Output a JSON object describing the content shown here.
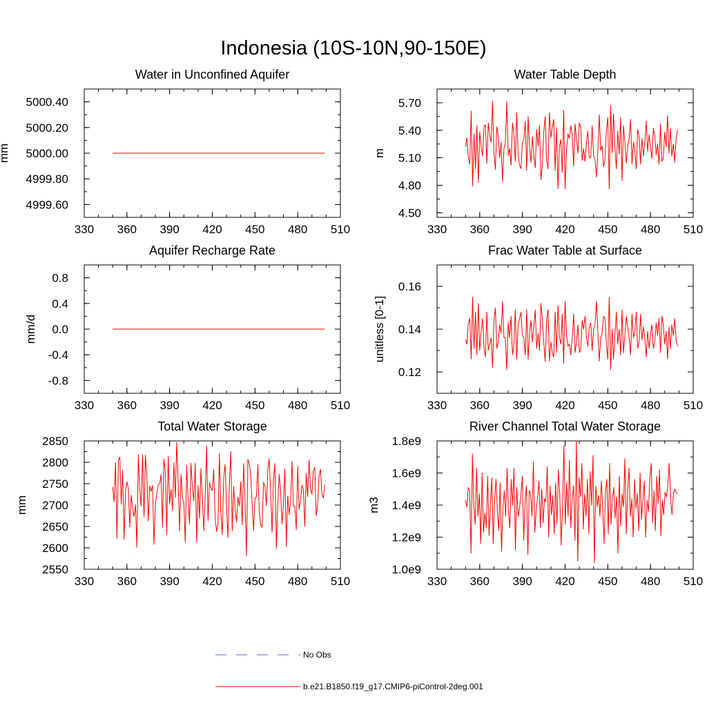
{
  "figure": {
    "title": "Indonesia (10S-10N,90-150E)",
    "series_color": "#ff0000",
    "obs_color": "#5a6ab8"
  },
  "legend": {
    "items": [
      {
        "label": "No Obs",
        "style": "dashed",
        "color": "#5a6ab8"
      },
      {
        "label": "b.e21.B1850.f19_g17.CMIP6-piControl-2deg.001",
        "style": "solid",
        "color": "#ff0000"
      }
    ]
  },
  "chart_data": [
    {
      "type": "line",
      "title": "Water in Unconfined Aquifer",
      "ylabel": "mm",
      "xlim": [
        330,
        510
      ],
      "ylim": [
        4999.5,
        5000.5
      ],
      "xticks": [
        330,
        360,
        390,
        420,
        450,
        480,
        510
      ],
      "yticks": [
        4999.6,
        4999.8,
        5000.0,
        5000.2,
        5000.4
      ],
      "ytick_labels": [
        "4999.60",
        "4999.80",
        "5000.00",
        "5000.20",
        "5000.40"
      ],
      "x_start": 350,
      "x_end": 499,
      "series": [
        {
          "name": "b.e21.B1850.f19_g17.CMIP6-piControl-2deg.001",
          "constant": 5000.0
        }
      ]
    },
    {
      "type": "line",
      "title": "Water Table Depth",
      "ylabel": "m",
      "xlim": [
        330,
        510
      ],
      "ylim": [
        4.45,
        5.85
      ],
      "xticks": [
        330,
        360,
        390,
        420,
        450,
        480,
        510
      ],
      "yticks": [
        4.5,
        4.8,
        5.1,
        5.4,
        5.7
      ],
      "ytick_labels": [
        "4.50",
        "4.80",
        "5.10",
        "5.40",
        "5.70"
      ],
      "x_start": 350,
      "x_end": 499,
      "series": [
        {
          "name": "b.e21.B1850.f19_g17.CMIP6-piControl-2deg.001",
          "values": [
            5.22,
            5.32,
            5.1,
            5.03,
            5.61,
            4.79,
            5.36,
            4.98,
            5.45,
            4.83,
            5.38,
            5.22,
            5.12,
            5.44,
            5.46,
            5.04,
            5.48,
            5.35,
            5.27,
            5.72,
            5.16,
            4.97,
            5.44,
            5.34,
            5.1,
            5.27,
            4.84,
            5.2,
            5.26,
            5.71,
            5.12,
            5.2,
            5.02,
            5.48,
            5.36,
            5.06,
            5.59,
            5.14,
            5.02,
            4.98,
            5.27,
            5.3,
            5.5,
            4.96,
            5.55,
            5.22,
            5.05,
            5.33,
            5.12,
            4.99,
            5.41,
            5.23,
            5.45,
            4.86,
            5.02,
            5.38,
            5.55,
            5.08,
            4.98,
            5.59,
            5.32,
            5.43,
            5.52,
            4.96,
            5.43,
            4.76,
            5.22,
            5.3,
            4.94,
            5.62,
            4.76,
            5.19,
            5.36,
            5.31,
            5.45,
            5.34,
            5.01,
            5.47,
            5.3,
            5.15,
            5.48,
            5.43,
            5.07,
            5.2,
            5.06,
            5.27,
            5.39,
            5.1,
            5.1,
            5.45,
            5.12,
            5.09,
            4.89,
            5.17,
            5.57,
            5.18,
            5.23,
            5.0,
            5.08,
            5.39,
            5.54,
            4.76,
            5.67,
            5.15,
            5.58,
            5.22,
            4.98,
            5.39,
            5.14,
            5.54,
            4.85,
            5.45,
            5.27,
            5.04,
            5.23,
            5.31,
            5.52,
            5.03,
            5.27,
            5.17,
            4.98,
            5.41,
            5.33,
            5.03,
            5.31,
            5.12,
            5.27,
            5.5,
            5.17,
            5.35,
            5.22,
            5.09,
            5.42,
            5.34,
            5.13,
            5.25,
            5.03,
            5.47,
            5.06,
            5.09,
            5.38,
            5.22,
            5.56,
            5.15,
            5.42,
            5.12,
            5.25,
            5.05,
            5.31,
            5.41
          ]
        }
      ]
    },
    {
      "type": "line",
      "title": "Aquifer Recharge Rate",
      "ylabel": "mm/d",
      "xlim": [
        330,
        510
      ],
      "ylim": [
        -1.0,
        1.0
      ],
      "xticks": [
        330,
        360,
        390,
        420,
        450,
        480,
        510
      ],
      "yticks": [
        -0.8,
        -0.4,
        0.0,
        0.4,
        0.8
      ],
      "ytick_labels": [
        "-0.8",
        "-0.4",
        "0.0",
        "0.4",
        "0.8"
      ],
      "x_start": 350,
      "x_end": 499,
      "series": [
        {
          "name": "b.e21.B1850.f19_g17.CMIP6-piControl-2deg.001",
          "constant": 0.0
        }
      ]
    },
    {
      "type": "line",
      "title": "Frac Water Table at Surface",
      "ylabel": "unitless [0-1]",
      "xlim": [
        330,
        510
      ],
      "ylim": [
        0.11,
        0.17
      ],
      "xticks": [
        330,
        360,
        390,
        420,
        450,
        480,
        510
      ],
      "yticks": [
        0.12,
        0.14,
        0.16
      ],
      "ytick_labels": [
        "0.12",
        "0.14",
        "0.16"
      ],
      "x_start": 350,
      "x_end": 499,
      "series": [
        {
          "name": "b.e21.B1850.f19_g17.CMIP6-piControl-2deg.001",
          "values": [
            0.135,
            0.133,
            0.143,
            0.145,
            0.126,
            0.155,
            0.131,
            0.148,
            0.128,
            0.152,
            0.13,
            0.139,
            0.145,
            0.131,
            0.127,
            0.148,
            0.13,
            0.133,
            0.136,
            0.122,
            0.144,
            0.15,
            0.131,
            0.134,
            0.142,
            0.138,
            0.153,
            0.136,
            0.136,
            0.121,
            0.143,
            0.136,
            0.146,
            0.128,
            0.133,
            0.149,
            0.126,
            0.142,
            0.145,
            0.148,
            0.137,
            0.136,
            0.128,
            0.149,
            0.126,
            0.138,
            0.144,
            0.134,
            0.141,
            0.149,
            0.131,
            0.138,
            0.13,
            0.152,
            0.145,
            0.134,
            0.125,
            0.144,
            0.149,
            0.125,
            0.134,
            0.129,
            0.127,
            0.148,
            0.129,
            0.151,
            0.136,
            0.133,
            0.147,
            0.124,
            0.153,
            0.137,
            0.132,
            0.133,
            0.128,
            0.136,
            0.147,
            0.129,
            0.134,
            0.142,
            0.129,
            0.131,
            0.144,
            0.14,
            0.146,
            0.136,
            0.132,
            0.141,
            0.143,
            0.13,
            0.14,
            0.142,
            0.153,
            0.139,
            0.125,
            0.136,
            0.138,
            0.146,
            0.145,
            0.133,
            0.126,
            0.155,
            0.121,
            0.14,
            0.126,
            0.137,
            0.148,
            0.133,
            0.14,
            0.128,
            0.149,
            0.129,
            0.137,
            0.146,
            0.141,
            0.136,
            0.128,
            0.147,
            0.136,
            0.139,
            0.148,
            0.131,
            0.134,
            0.147,
            0.135,
            0.141,
            0.136,
            0.127,
            0.139,
            0.131,
            0.138,
            0.142,
            0.131,
            0.134,
            0.143,
            0.137,
            0.145,
            0.129,
            0.146,
            0.142,
            0.133,
            0.139,
            0.126,
            0.141,
            0.131,
            0.142,
            0.137,
            0.145,
            0.135,
            0.132
          ]
        }
      ]
    },
    {
      "type": "line",
      "title": "Total Water Storage",
      "ylabel": "mm",
      "xlim": [
        330,
        510
      ],
      "ylim": [
        2550,
        2850
      ],
      "xticks": [
        330,
        360,
        390,
        420,
        450,
        480,
        510
      ],
      "yticks": [
        2550,
        2600,
        2650,
        2700,
        2750,
        2800,
        2850
      ],
      "ytick_labels": [
        "2550",
        "2600",
        "2650",
        "2700",
        "2750",
        "2800",
        "2850"
      ],
      "x_start": 350,
      "x_end": 499,
      "series": [
        {
          "name": "b.e21.B1850.f19_g17.CMIP6-piControl-2deg.001",
          "values": [
            2742,
            2708,
            2800,
            2622,
            2805,
            2812,
            2702,
            2781,
            2620,
            2733,
            2754,
            2739,
            2649,
            2723,
            2693,
            2673,
            2701,
            2601,
            2818,
            2735,
            2698,
            2818,
            2673,
            2817,
            2768,
            2663,
            2745,
            2732,
            2746,
            2608,
            2704,
            2727,
            2747,
            2750,
            2772,
            2648,
            2808,
            2776,
            2631,
            2814,
            2703,
            2737,
            2688,
            2799,
            2718,
            2847,
            2752,
            2640,
            2772,
            2717,
            2705,
            2613,
            2793,
            2715,
            2655,
            2798,
            2744,
            2710,
            2798,
            2613,
            2746,
            2669,
            2785,
            2717,
            2640,
            2720,
            2838,
            2663,
            2753,
            2740,
            2734,
            2783,
            2670,
            2638,
            2657,
            2820,
            2685,
            2631,
            2765,
            2795,
            2696,
            2624,
            2749,
            2825,
            2640,
            2744,
            2689,
            2660,
            2719,
            2698,
            2755,
            2654,
            2797,
            2710,
            2580,
            2807,
            2796,
            2770,
            2701,
            2641,
            2717,
            2719,
            2795,
            2682,
            2654,
            2648,
            2753,
            2745,
            2699,
            2782,
            2808,
            2729,
            2636,
            2762,
            2797,
            2598,
            2703,
            2772,
            2732,
            2655,
            2704,
            2785,
            2603,
            2721,
            2678,
            2708,
            2802,
            2697,
            2697,
            2642,
            2791,
            2690,
            2712,
            2747,
            2736,
            2650,
            2774,
            2720,
            2806,
            2737,
            2726,
            2781,
            2788,
            2676,
            2700,
            2768,
            2784,
            2727,
            2716,
            2748
          ]
        }
      ]
    },
    {
      "type": "line",
      "title": "River Channel Total Water Storage",
      "ylabel": "m3",
      "xlim": [
        330,
        510
      ],
      "ylim": [
        1000000000.0,
        1800000000.0
      ],
      "xticks": [
        330,
        360,
        390,
        420,
        450,
        480,
        510
      ],
      "yticks": [
        1000000000.0,
        1200000000.0,
        1400000000.0,
        1600000000.0,
        1800000000.0
      ],
      "ytick_labels": [
        "1.0e9",
        "1.2e9",
        "1.4e9",
        "1.6e9",
        "1.8e9"
      ],
      "x_start": 350,
      "x_end": 499,
      "series": [
        {
          "name": "b.e21.B1850.f19_g17.CMIP6-piControl-2deg.001",
          "values": [
            1430000000.0,
            1390000000.0,
            1510000000.0,
            1490000000.0,
            1100000000.0,
            1720000000.0,
            1390000000.0,
            1280000000.0,
            1630000000.0,
            1330000000.0,
            1470000000.0,
            1160000000.0,
            1600000000.0,
            1230000000.0,
            1350000000.0,
            1260000000.0,
            1580000000.0,
            1210000000.0,
            1410000000.0,
            1570000000.0,
            1160000000.0,
            1420000000.0,
            1560000000.0,
            1360000000.0,
            1240000000.0,
            1540000000.0,
            1110000000.0,
            1380000000.0,
            1490000000.0,
            1330000000.0,
            1630000000.0,
            1350000000.0,
            1260000000.0,
            1560000000.0,
            1400000000.0,
            1630000000.0,
            1120000000.0,
            1510000000.0,
            1330000000.0,
            1380000000.0,
            1470000000.0,
            1580000000.0,
            1180000000.0,
            1430000000.0,
            1520000000.0,
            1090000000.0,
            1490000000.0,
            1470000000.0,
            1330000000.0,
            1670000000.0,
            1230000000.0,
            1370000000.0,
            1450000000.0,
            1550000000.0,
            1260000000.0,
            1500000000.0,
            1290000000.0,
            1440000000.0,
            1420000000.0,
            1640000000.0,
            1200000000.0,
            1520000000.0,
            1340000000.0,
            1460000000.0,
            1220000000.0,
            1540000000.0,
            1280000000.0,
            1620000000.0,
            1470000000.0,
            1150000000.0,
            1390000000.0,
            1770000000.0,
            1280000000.0,
            1540000000.0,
            1330000000.0,
            1680000000.0,
            1260000000.0,
            1440000000.0,
            1520000000.0,
            1180000000.0,
            1800000000.0,
            1050000000.0,
            1570000000.0,
            1450000000.0,
            1660000000.0,
            1250000000.0,
            1470000000.0,
            1330000000.0,
            1560000000.0,
            1220000000.0,
            1610000000.0,
            1400000000.0,
            1710000000.0,
            1040000000.0,
            1520000000.0,
            1390000000.0,
            1460000000.0,
            1330000000.0,
            1550000000.0,
            1390000000.0,
            1160000000.0,
            1480000000.0,
            1560000000.0,
            1220000000.0,
            1660000000.0,
            1280000000.0,
            1440000000.0,
            1510000000.0,
            1320000000.0,
            1450000000.0,
            1100000000.0,
            1580000000.0,
            1270000000.0,
            1470000000.0,
            1390000000.0,
            1690000000.0,
            1220000000.0,
            1490000000.0,
            1630000000.0,
            1330000000.0,
            1440000000.0,
            1200000000.0,
            1560000000.0,
            1380000000.0,
            1470000000.0,
            1240000000.0,
            1600000000.0,
            1310000000.0,
            1440000000.0,
            1550000000.0,
            1200000000.0,
            1430000000.0,
            1360000000.0,
            1570000000.0,
            1660000000.0,
            1290000000.0,
            1490000000.0,
            1240000000.0,
            1580000000.0,
            1410000000.0,
            1620000000.0,
            1210000000.0,
            1430000000.0,
            1340000000.0,
            1480000000.0,
            1450000000.0,
            1520000000.0,
            1660000000.0,
            1440000000.0,
            1340000000.0,
            1470000000.0,
            1500000000.0,
            1480000000.0,
            1470000000.0
          ]
        }
      ]
    }
  ]
}
